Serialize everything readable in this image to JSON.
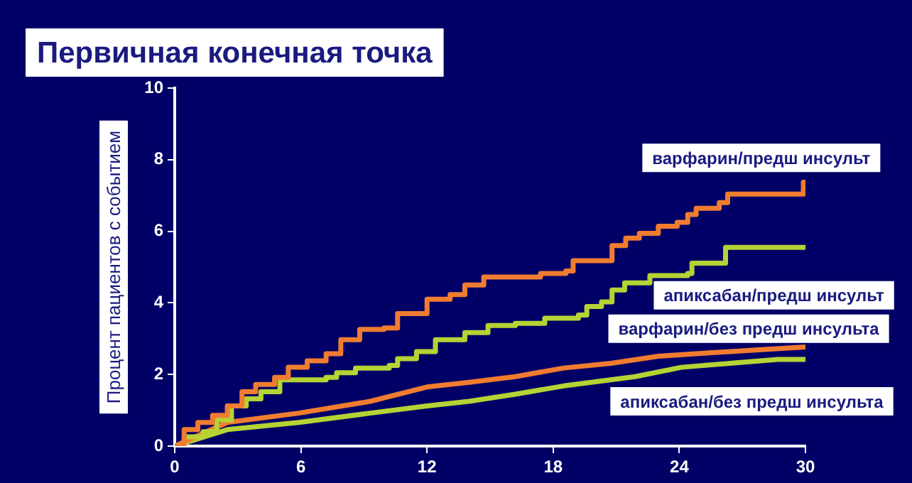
{
  "chart_data": {
    "type": "step",
    "title": "Первичная конечная точка",
    "ylabel": "Процент пациентов с событием",
    "xlim": [
      0,
      30
    ],
    "xticks": [
      0,
      6,
      12,
      18,
      24,
      30
    ],
    "ylim": [
      0,
      10
    ],
    "yticks": [
      0,
      2,
      4,
      6,
      8,
      10
    ],
    "grid": false,
    "legend": false,
    "series": [
      {
        "name": "варфарин/предш инсульт",
        "color": "#f07c30",
        "x": [
          0,
          0.45,
          1.1,
          1.8,
          2.5,
          3.2,
          3.85,
          4.75,
          5.4,
          6.3,
          7.2,
          7.9,
          8.8,
          9.95,
          10.6,
          11.5,
          12,
          13.1,
          13.8,
          14.7,
          17.4,
          18.6,
          18.95,
          20.1,
          20.8,
          21.45,
          22.1,
          23,
          23.9,
          24.4,
          24.8,
          25.9,
          26.3,
          29.8,
          29.9,
          30
        ],
        "values": [
          0,
          0.46,
          0.66,
          0.86,
          1.12,
          1.52,
          1.72,
          1.92,
          2.2,
          2.38,
          2.58,
          2.97,
          3.26,
          3.3,
          3.7,
          3.7,
          4.1,
          4.23,
          4.5,
          4.72,
          4.82,
          4.89,
          5.18,
          5.18,
          5.6,
          5.81,
          5.94,
          6.14,
          6.25,
          6.47,
          6.64,
          6.8,
          7.04,
          7.04,
          7.37,
          7.37
        ]
      },
      {
        "name": "апиксабан/предш инсульт",
        "color": "#b5d334",
        "x": [
          0,
          0.45,
          1.35,
          2,
          2.7,
          3.4,
          4.1,
          5,
          7.2,
          7.7,
          8.6,
          10.2,
          10.6,
          11.5,
          12.4,
          13.8,
          14.9,
          16.2,
          17.6,
          19.2,
          19.6,
          20.3,
          20.8,
          21.4,
          22.6,
          24.4,
          24.6,
          26.2,
          30
        ],
        "values": [
          0,
          0.26,
          0.4,
          0.73,
          1.12,
          1.32,
          1.52,
          1.85,
          1.92,
          2.05,
          2.18,
          2.25,
          2.44,
          2.64,
          2.97,
          3.17,
          3.37,
          3.43,
          3.57,
          3.66,
          3.9,
          4.03,
          4.36,
          4.56,
          4.76,
          4.82,
          5.11,
          5.55,
          5.55
        ]
      },
      {
        "name": "варфарин/без предш инсульта",
        "type": "line",
        "color": "#f07c30",
        "x": [
          0,
          2.5,
          5.9,
          9.3,
          12,
          14,
          16.2,
          18.5,
          20.75,
          23,
          25.3,
          27.5,
          30
        ],
        "values": [
          0,
          0.66,
          0.92,
          1.25,
          1.65,
          1.78,
          1.94,
          2.18,
          2.31,
          2.51,
          2.6,
          2.68,
          2.77
        ]
      },
      {
        "name": "апиксабан/без предш инсульта",
        "type": "line",
        "color": "#b5d334",
        "x": [
          0,
          2.5,
          5.9,
          9.3,
          12,
          14,
          16.2,
          18.5,
          21.9,
          24.1,
          26.4,
          28.7,
          30
        ],
        "values": [
          0,
          0.46,
          0.66,
          0.92,
          1.12,
          1.25,
          1.45,
          1.68,
          1.94,
          2.2,
          2.31,
          2.42,
          2.42
        ]
      }
    ]
  }
}
